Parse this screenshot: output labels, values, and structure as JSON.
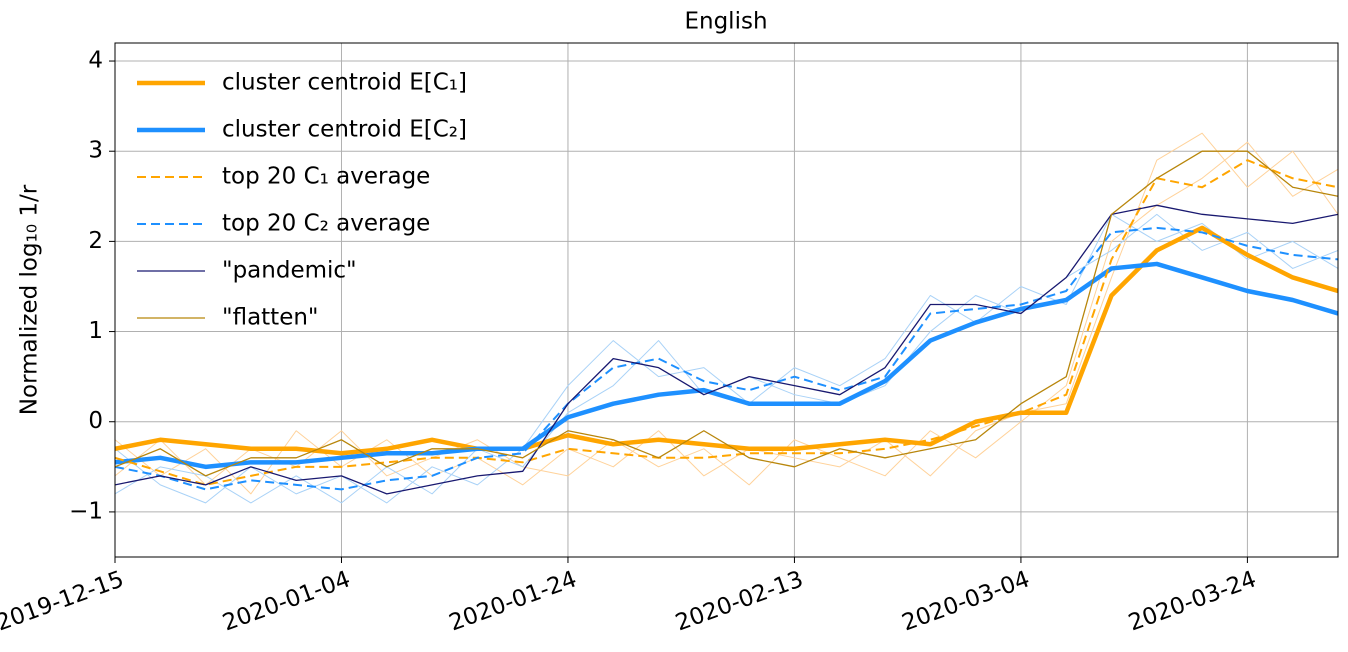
{
  "chart_data": {
    "type": "line",
    "title": "English",
    "y_label": "Normalized log₁₀ 1/r",
    "x": [
      "2019-12-15",
      "2019-12-19",
      "2019-12-23",
      "2019-12-27",
      "2019-12-31",
      "2020-01-04",
      "2020-01-08",
      "2020-01-12",
      "2020-01-16",
      "2020-01-20",
      "2020-01-24",
      "2020-01-28",
      "2020-02-01",
      "2020-02-05",
      "2020-02-09",
      "2020-02-13",
      "2020-02-17",
      "2020-02-21",
      "2020-02-25",
      "2020-02-29",
      "2020-03-04",
      "2020-03-08",
      "2020-03-12",
      "2020-03-16",
      "2020-03-20",
      "2020-03-24",
      "2020-03-28",
      "2020-04-01"
    ],
    "xlim": [
      "2019-12-15",
      "2020-04-01"
    ],
    "xticks": [
      "2019-12-15",
      "2020-01-04",
      "2020-01-24",
      "2020-02-13",
      "2020-03-04",
      "2020-03-24"
    ],
    "ylim": [
      -1.5,
      4.2
    ],
    "yticks": [
      {
        "value": -1,
        "label": "−1"
      },
      0,
      1,
      2,
      3,
      4
    ],
    "grid": true,
    "legend": "upper left",
    "series": [
      {
        "color": "#ffd29a",
        "linewidth": 1,
        "values": [
          -0.2,
          -0.6,
          -0.3,
          -0.8,
          -0.1,
          -0.5,
          -0.2,
          -0.6,
          -0.4,
          -0.7,
          -0.3,
          -0.5,
          -0.1,
          -0.6,
          -0.3,
          -0.4,
          -0.5,
          -0.2,
          -0.6,
          -0.1,
          0.1,
          0.2,
          1.6,
          2.9,
          3.2,
          2.6,
          3.0,
          2.3
        ]
      },
      {
        "color": "#ffd29a",
        "linewidth": 1,
        "values": [
          -0.6,
          -0.2,
          -0.7,
          -0.3,
          -0.5,
          -0.1,
          -0.6,
          -0.4,
          -0.2,
          -0.5,
          -0.6,
          -0.2,
          -0.5,
          -0.3,
          -0.7,
          -0.2,
          -0.4,
          -0.6,
          -0.1,
          -0.4,
          0.0,
          0.4,
          2.0,
          2.4,
          2.7,
          3.1,
          2.5,
          2.8
        ]
      },
      {
        "color": "#a9d2f7",
        "linewidth": 1,
        "values": [
          -0.3,
          -0.7,
          -0.9,
          -0.5,
          -0.8,
          -0.6,
          -0.9,
          -0.5,
          -0.7,
          -0.3,
          0.4,
          0.9,
          0.5,
          0.6,
          0.2,
          0.6,
          0.4,
          0.7,
          1.4,
          1.1,
          1.5,
          1.3,
          2.3,
          2.0,
          2.2,
          1.8,
          2.0,
          1.7
        ]
      },
      {
        "color": "#a9d2f7",
        "linewidth": 1,
        "values": [
          -0.8,
          -0.5,
          -0.6,
          -0.9,
          -0.6,
          -0.9,
          -0.5,
          -0.8,
          -0.3,
          -0.5,
          0.1,
          0.4,
          0.9,
          0.3,
          0.5,
          0.3,
          0.2,
          0.4,
          1.0,
          1.4,
          1.2,
          1.6,
          1.9,
          2.3,
          1.9,
          2.1,
          1.7,
          1.9
        ]
      },
      {
        "name": "cluster centroid E[C₁]",
        "color": "#ffa500",
        "linewidth": 4.5,
        "dashed": false,
        "values": [
          -0.3,
          -0.2,
          -0.25,
          -0.3,
          -0.3,
          -0.35,
          -0.3,
          -0.2,
          -0.3,
          -0.3,
          -0.15,
          -0.25,
          -0.2,
          -0.25,
          -0.3,
          -0.3,
          -0.25,
          -0.2,
          -0.25,
          0.0,
          0.1,
          0.1,
          1.4,
          1.9,
          2.15,
          1.85,
          1.6,
          1.45
        ]
      },
      {
        "name": "cluster centroid E[C₂]",
        "color": "#1e90ff",
        "linewidth": 4.5,
        "dashed": false,
        "values": [
          -0.45,
          -0.4,
          -0.5,
          -0.45,
          -0.45,
          -0.4,
          -0.35,
          -0.35,
          -0.3,
          -0.3,
          0.05,
          0.2,
          0.3,
          0.35,
          0.2,
          0.2,
          0.2,
          0.45,
          0.9,
          1.1,
          1.25,
          1.35,
          1.7,
          1.75,
          1.6,
          1.45,
          1.35,
          1.2
        ]
      },
      {
        "name": "top 20 C₁ average",
        "color": "#ffa500",
        "linewidth": 2,
        "dashed": true,
        "values": [
          -0.4,
          -0.55,
          -0.7,
          -0.6,
          -0.5,
          -0.5,
          -0.45,
          -0.4,
          -0.4,
          -0.45,
          -0.3,
          -0.35,
          -0.4,
          -0.4,
          -0.35,
          -0.35,
          -0.35,
          -0.3,
          -0.2,
          -0.05,
          0.1,
          0.3,
          1.8,
          2.7,
          2.6,
          2.9,
          2.7,
          2.6
        ]
      },
      {
        "name": "top 20 C₂ average",
        "color": "#1e90ff",
        "linewidth": 2,
        "dashed": true,
        "values": [
          -0.5,
          -0.6,
          -0.75,
          -0.65,
          -0.7,
          -0.75,
          -0.65,
          -0.6,
          -0.4,
          -0.35,
          0.2,
          0.6,
          0.7,
          0.45,
          0.35,
          0.5,
          0.35,
          0.5,
          1.2,
          1.25,
          1.3,
          1.45,
          2.1,
          2.15,
          2.1,
          1.95,
          1.85,
          1.8
        ]
      },
      {
        "name": "\"pandemic\"",
        "color": "#191970",
        "linewidth": 1.3,
        "dashed": false,
        "values": [
          -0.7,
          -0.6,
          -0.7,
          -0.5,
          -0.65,
          -0.6,
          -0.8,
          -0.7,
          -0.6,
          -0.55,
          0.2,
          0.7,
          0.6,
          0.3,
          0.5,
          0.4,
          0.3,
          0.6,
          1.3,
          1.3,
          1.2,
          1.6,
          2.3,
          2.4,
          2.3,
          2.25,
          2.2,
          2.3
        ]
      },
      {
        "name": "\"flatten\"",
        "color": "#b8860b",
        "linewidth": 1.3,
        "dashed": false,
        "values": [
          -0.5,
          -0.3,
          -0.6,
          -0.4,
          -0.4,
          -0.2,
          -0.5,
          -0.3,
          -0.3,
          -0.4,
          -0.1,
          -0.2,
          -0.4,
          -0.1,
          -0.4,
          -0.5,
          -0.3,
          -0.4,
          -0.3,
          -0.2,
          0.2,
          0.5,
          2.3,
          2.7,
          3.0,
          3.0,
          2.6,
          2.5
        ]
      }
    ]
  }
}
